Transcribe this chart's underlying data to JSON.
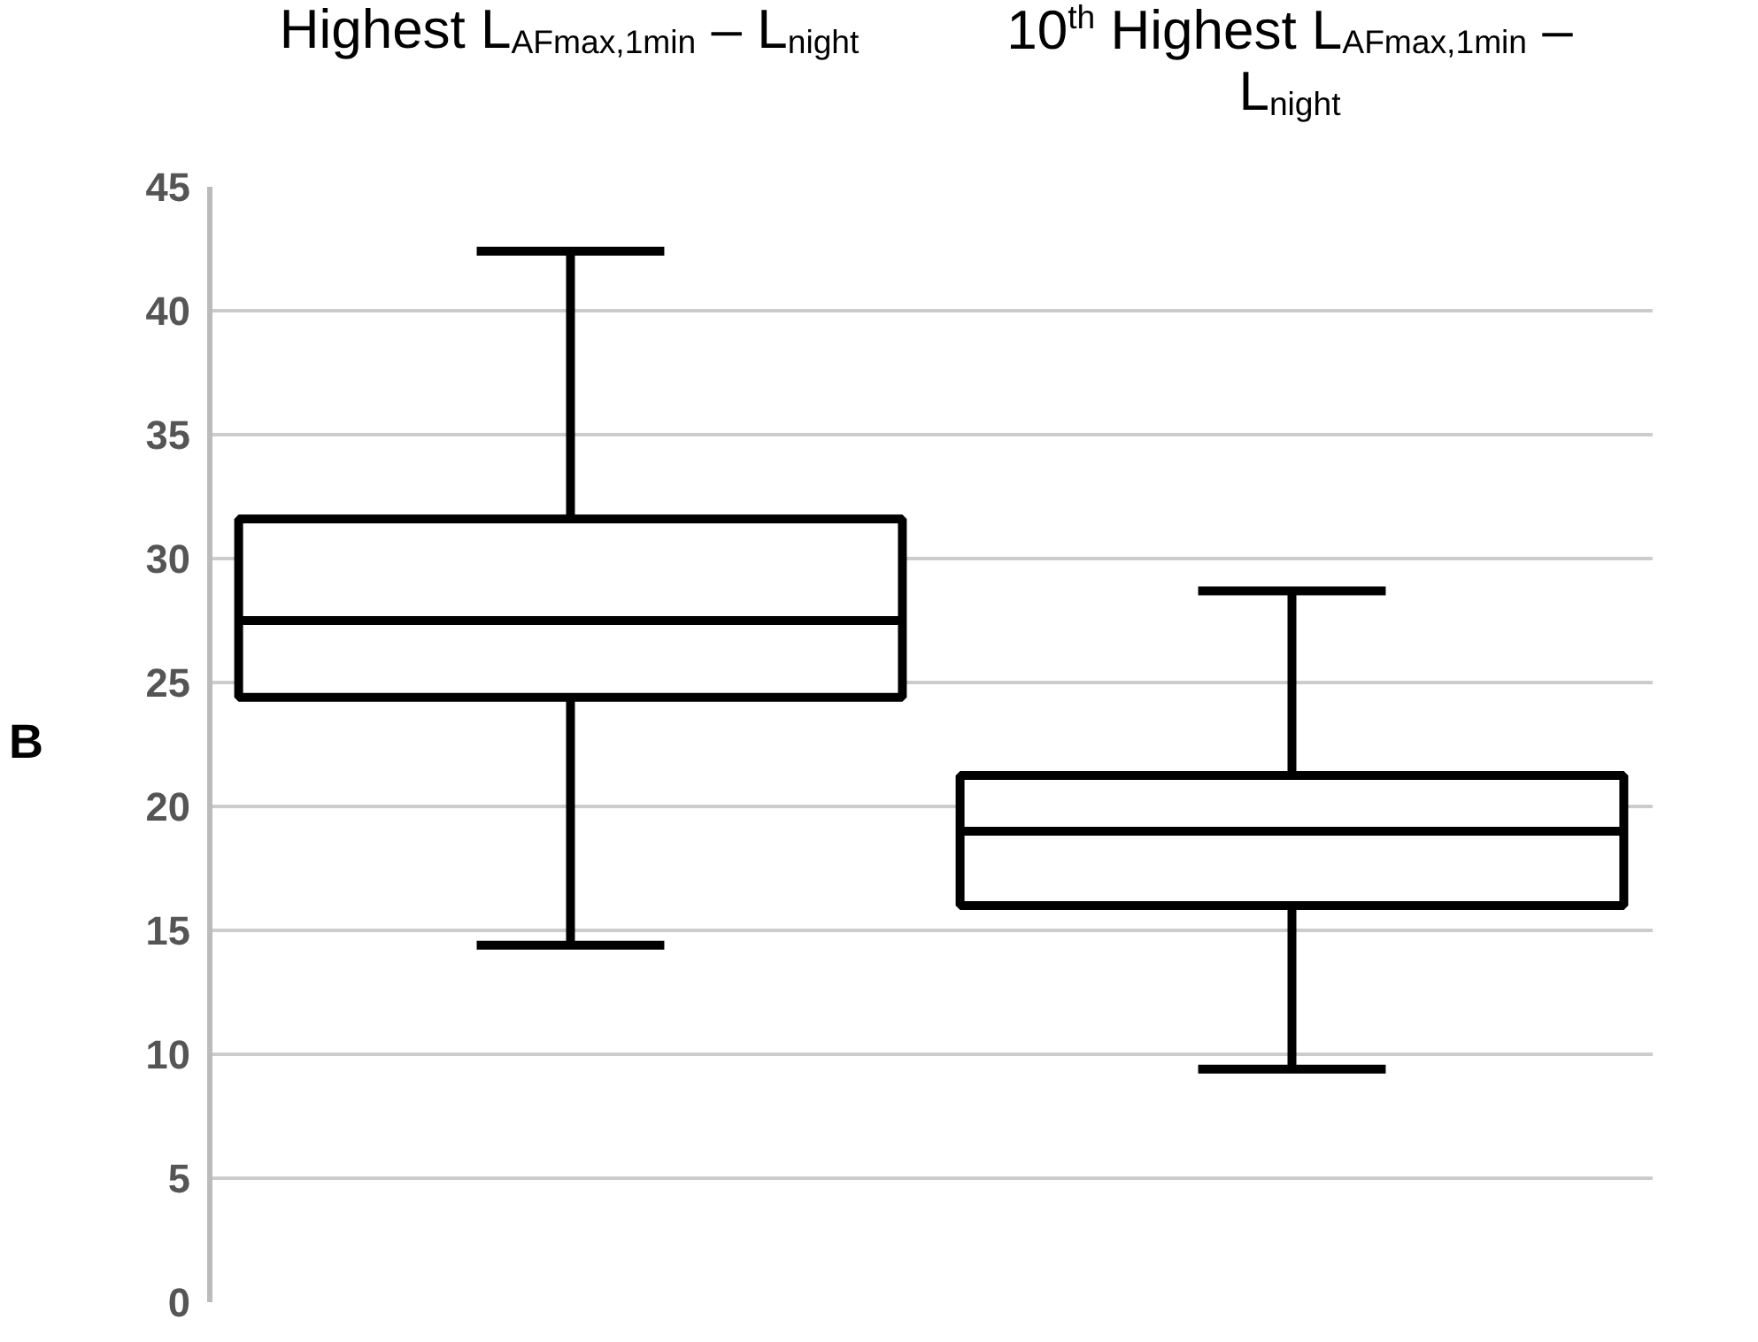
{
  "chart_data": {
    "type": "box",
    "categories": [
      "Highest L$_{AFmax,1min}$ – L$_{night}$",
      "10$^{th}$ Highest L$_{AFmax,1min}$ – L$_{night}$"
    ],
    "boxes": [
      {
        "low": 14.4,
        "q1": 24.4,
        "median": 27.5,
        "q3": 31.6,
        "high": 42.4
      },
      {
        "low": 9.4,
        "q1": 16.0,
        "median": 19.0,
        "q3": 21.25,
        "high": 28.7
      }
    ],
    "color": "#000000",
    "ylim": [
      0,
      45
    ],
    "yticks": [
      0,
      5,
      10,
      15,
      20,
      25,
      30,
      35,
      40,
      45
    ],
    "grid": "y",
    "annotations": [
      "B"
    ]
  }
}
